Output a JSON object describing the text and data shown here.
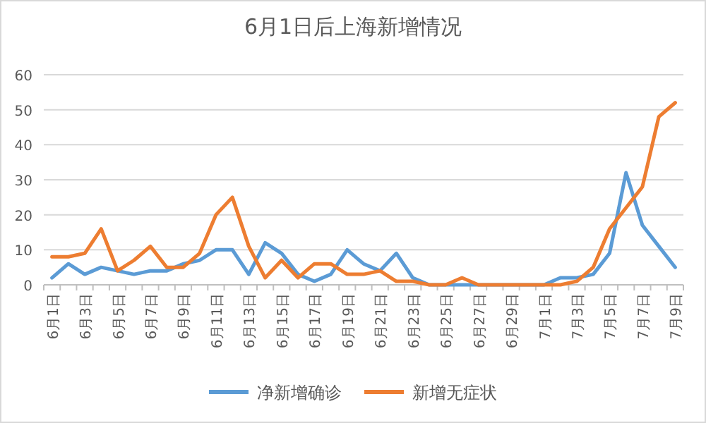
{
  "chart_data": {
    "type": "line",
    "title": "6月1日后上海新增情况",
    "categories": [
      "6月1日",
      null,
      "6月3日",
      null,
      "6月5日",
      null,
      "6月7日",
      null,
      "6月9日",
      null,
      "6月11日",
      null,
      "6月13日",
      null,
      "6月15日",
      null,
      "6月17日",
      null,
      "6月19日",
      null,
      "6月21日",
      null,
      "6月23日",
      null,
      "6月25日",
      null,
      "6月27日",
      null,
      "6月29日",
      null,
      "7月1日",
      null,
      "7月3日",
      null,
      "7月5日",
      null,
      "7月7日",
      null,
      "7月9日"
    ],
    "series": [
      {
        "name": "净新增确诊",
        "color": "#5b9bd5",
        "values": [
          2,
          6,
          3,
          5,
          4,
          3,
          4,
          4,
          6,
          7,
          10,
          10,
          3,
          12,
          9,
          3,
          1,
          3,
          10,
          6,
          4,
          9,
          2,
          0,
          0,
          0,
          0,
          0,
          0,
          0,
          0,
          2,
          2,
          3,
          9,
          32,
          17,
          11,
          5
        ]
      },
      {
        "name": "新增无症状",
        "color": "#ed7d31",
        "values": [
          8,
          8,
          9,
          16,
          4,
          7,
          11,
          5,
          5,
          9,
          20,
          25,
          11,
          2,
          7,
          2,
          6,
          6,
          3,
          3,
          4,
          1,
          1,
          0,
          0,
          2,
          0,
          0,
          0,
          0,
          0,
          0,
          1,
          5,
          16,
          22,
          28,
          48,
          52
        ]
      }
    ],
    "ylim": [
      0,
      60
    ],
    "yticks": [
      0,
      10,
      20,
      30,
      40,
      50,
      60
    ],
    "grid": "y",
    "legend": "bottom",
    "marker": "none",
    "line_style": "solid"
  }
}
